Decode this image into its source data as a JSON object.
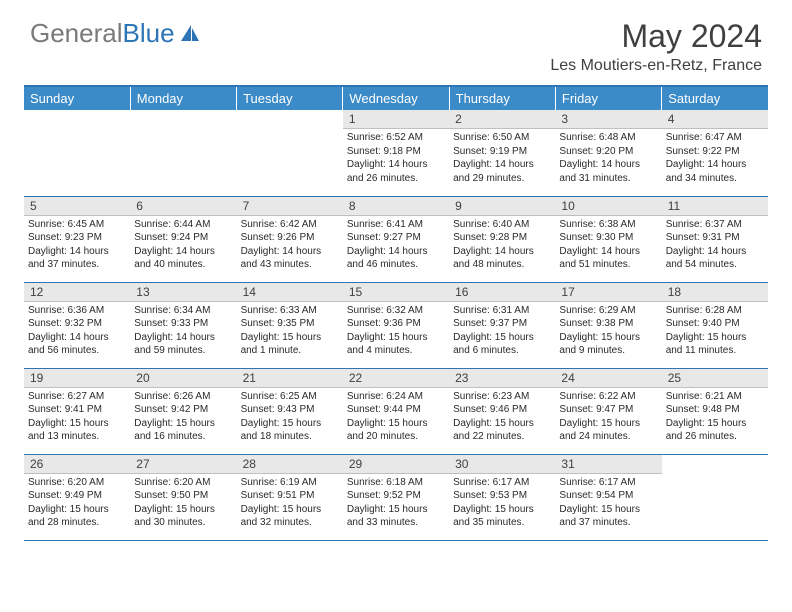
{
  "brand": {
    "part1": "General",
    "part2": "Blue"
  },
  "title": "May 2024",
  "location": "Les Moutiers-en-Retz, France",
  "colors": {
    "header_blue": "#3b8bc9",
    "divider_blue": "#2e75b6",
    "daynum_bg": "#e8e8e8",
    "text": "#2a2a2a"
  },
  "day_headers": [
    "Sunday",
    "Monday",
    "Tuesday",
    "Wednesday",
    "Thursday",
    "Friday",
    "Saturday"
  ],
  "weeks": [
    [
      null,
      null,
      null,
      {
        "n": "1",
        "sunrise": "6:52 AM",
        "sunset": "9:18 PM",
        "daylight": "14 hours and 26 minutes."
      },
      {
        "n": "2",
        "sunrise": "6:50 AM",
        "sunset": "9:19 PM",
        "daylight": "14 hours and 29 minutes."
      },
      {
        "n": "3",
        "sunrise": "6:48 AM",
        "sunset": "9:20 PM",
        "daylight": "14 hours and 31 minutes."
      },
      {
        "n": "4",
        "sunrise": "6:47 AM",
        "sunset": "9:22 PM",
        "daylight": "14 hours and 34 minutes."
      }
    ],
    [
      {
        "n": "5",
        "sunrise": "6:45 AM",
        "sunset": "9:23 PM",
        "daylight": "14 hours and 37 minutes."
      },
      {
        "n": "6",
        "sunrise": "6:44 AM",
        "sunset": "9:24 PM",
        "daylight": "14 hours and 40 minutes."
      },
      {
        "n": "7",
        "sunrise": "6:42 AM",
        "sunset": "9:26 PM",
        "daylight": "14 hours and 43 minutes."
      },
      {
        "n": "8",
        "sunrise": "6:41 AM",
        "sunset": "9:27 PM",
        "daylight": "14 hours and 46 minutes."
      },
      {
        "n": "9",
        "sunrise": "6:40 AM",
        "sunset": "9:28 PM",
        "daylight": "14 hours and 48 minutes."
      },
      {
        "n": "10",
        "sunrise": "6:38 AM",
        "sunset": "9:30 PM",
        "daylight": "14 hours and 51 minutes."
      },
      {
        "n": "11",
        "sunrise": "6:37 AM",
        "sunset": "9:31 PM",
        "daylight": "14 hours and 54 minutes."
      }
    ],
    [
      {
        "n": "12",
        "sunrise": "6:36 AM",
        "sunset": "9:32 PM",
        "daylight": "14 hours and 56 minutes."
      },
      {
        "n": "13",
        "sunrise": "6:34 AM",
        "sunset": "9:33 PM",
        "daylight": "14 hours and 59 minutes."
      },
      {
        "n": "14",
        "sunrise": "6:33 AM",
        "sunset": "9:35 PM",
        "daylight": "15 hours and 1 minute."
      },
      {
        "n": "15",
        "sunrise": "6:32 AM",
        "sunset": "9:36 PM",
        "daylight": "15 hours and 4 minutes."
      },
      {
        "n": "16",
        "sunrise": "6:31 AM",
        "sunset": "9:37 PM",
        "daylight": "15 hours and 6 minutes."
      },
      {
        "n": "17",
        "sunrise": "6:29 AM",
        "sunset": "9:38 PM",
        "daylight": "15 hours and 9 minutes."
      },
      {
        "n": "18",
        "sunrise": "6:28 AM",
        "sunset": "9:40 PM",
        "daylight": "15 hours and 11 minutes."
      }
    ],
    [
      {
        "n": "19",
        "sunrise": "6:27 AM",
        "sunset": "9:41 PM",
        "daylight": "15 hours and 13 minutes."
      },
      {
        "n": "20",
        "sunrise": "6:26 AM",
        "sunset": "9:42 PM",
        "daylight": "15 hours and 16 minutes."
      },
      {
        "n": "21",
        "sunrise": "6:25 AM",
        "sunset": "9:43 PM",
        "daylight": "15 hours and 18 minutes."
      },
      {
        "n": "22",
        "sunrise": "6:24 AM",
        "sunset": "9:44 PM",
        "daylight": "15 hours and 20 minutes."
      },
      {
        "n": "23",
        "sunrise": "6:23 AM",
        "sunset": "9:46 PM",
        "daylight": "15 hours and 22 minutes."
      },
      {
        "n": "24",
        "sunrise": "6:22 AM",
        "sunset": "9:47 PM",
        "daylight": "15 hours and 24 minutes."
      },
      {
        "n": "25",
        "sunrise": "6:21 AM",
        "sunset": "9:48 PM",
        "daylight": "15 hours and 26 minutes."
      }
    ],
    [
      {
        "n": "26",
        "sunrise": "6:20 AM",
        "sunset": "9:49 PM",
        "daylight": "15 hours and 28 minutes."
      },
      {
        "n": "27",
        "sunrise": "6:20 AM",
        "sunset": "9:50 PM",
        "daylight": "15 hours and 30 minutes."
      },
      {
        "n": "28",
        "sunrise": "6:19 AM",
        "sunset": "9:51 PM",
        "daylight": "15 hours and 32 minutes."
      },
      {
        "n": "29",
        "sunrise": "6:18 AM",
        "sunset": "9:52 PM",
        "daylight": "15 hours and 33 minutes."
      },
      {
        "n": "30",
        "sunrise": "6:17 AM",
        "sunset": "9:53 PM",
        "daylight": "15 hours and 35 minutes."
      },
      {
        "n": "31",
        "sunrise": "6:17 AM",
        "sunset": "9:54 PM",
        "daylight": "15 hours and 37 minutes."
      },
      null
    ]
  ],
  "labels": {
    "sunrise": "Sunrise:",
    "sunset": "Sunset:",
    "daylight": "Daylight:"
  }
}
